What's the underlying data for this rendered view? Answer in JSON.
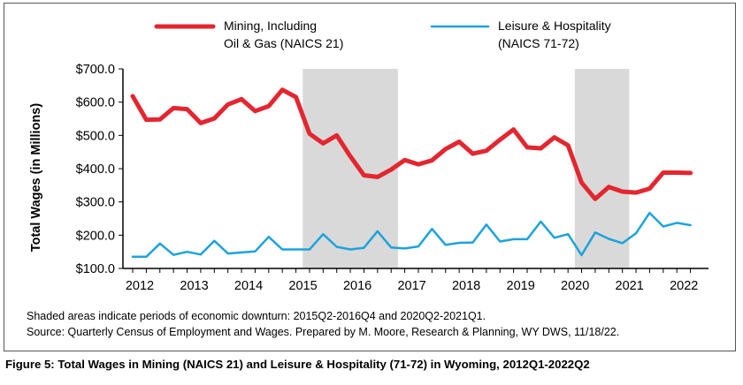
{
  "chart_data": {
    "type": "line",
    "ylabel": "Total Wages (in Millions)",
    "xlabel": "",
    "ylim": [
      100,
      700
    ],
    "yticks": [
      "$100.0",
      "$200.0",
      "$300.0",
      "$400.0",
      "$500.0",
      "$600.0",
      "$700.0"
    ],
    "yticks_values": [
      100,
      200,
      300,
      400,
      500,
      600,
      700
    ],
    "xticks": [
      "2012",
      "2013",
      "2014",
      "2015",
      "2016",
      "2017",
      "2018",
      "2019",
      "2020",
      "2021",
      "2022"
    ],
    "x_start": "2012Q1",
    "x_end": "2022Q2",
    "shaded_periods": [
      [
        "2015Q2",
        "2016Q4"
      ],
      [
        "2020Q2",
        "2021Q1"
      ]
    ],
    "grid": false,
    "legend_position": "top",
    "series": [
      {
        "name_lines": [
          "Mining, Including",
          "Oil & Gas (NAICS 21)"
        ],
        "color": "#e3262f",
        "values": [
          618,
          547,
          548,
          582,
          579,
          537,
          551,
          593,
          609,
          573,
          588,
          637,
          615,
          505,
          476,
          500,
          437,
          380,
          375,
          397,
          426,
          413,
          425,
          459,
          481,
          445,
          454,
          487,
          518,
          464,
          461,
          494,
          470,
          358,
          309,
          345,
          331,
          328,
          340,
          388,
          388,
          387
        ]
      },
      {
        "name_lines": [
          "Leisure & Hospitality",
          "(NAICS 71-72)"
        ],
        "color": "#1ca3dd",
        "values": [
          135,
          135,
          175,
          141,
          150,
          142,
          183,
          145,
          148,
          151,
          195,
          157,
          157,
          157,
          203,
          165,
          157,
          162,
          212,
          163,
          160,
          166,
          219,
          171,
          177,
          178,
          232,
          181,
          188,
          188,
          241,
          192,
          203,
          140,
          208,
          189,
          176,
          206,
          267,
          226,
          237,
          230
        ]
      }
    ]
  },
  "notes": {
    "line1": "Shaded areas indicate periods of economic downturn: 2015Q2-2016Q4 and 2020Q2-2021Q1.",
    "line2": "Source: Quarterly Census of Employment and Wages. Prepared by M. Moore, Research & Planning, WY DWS, 11/18/22."
  },
  "caption": "Figure 5: Total Wages in Mining (NAICS 21) and Leisure & Hospitality (71-72) in Wyoming, 2012Q1-2022Q2"
}
